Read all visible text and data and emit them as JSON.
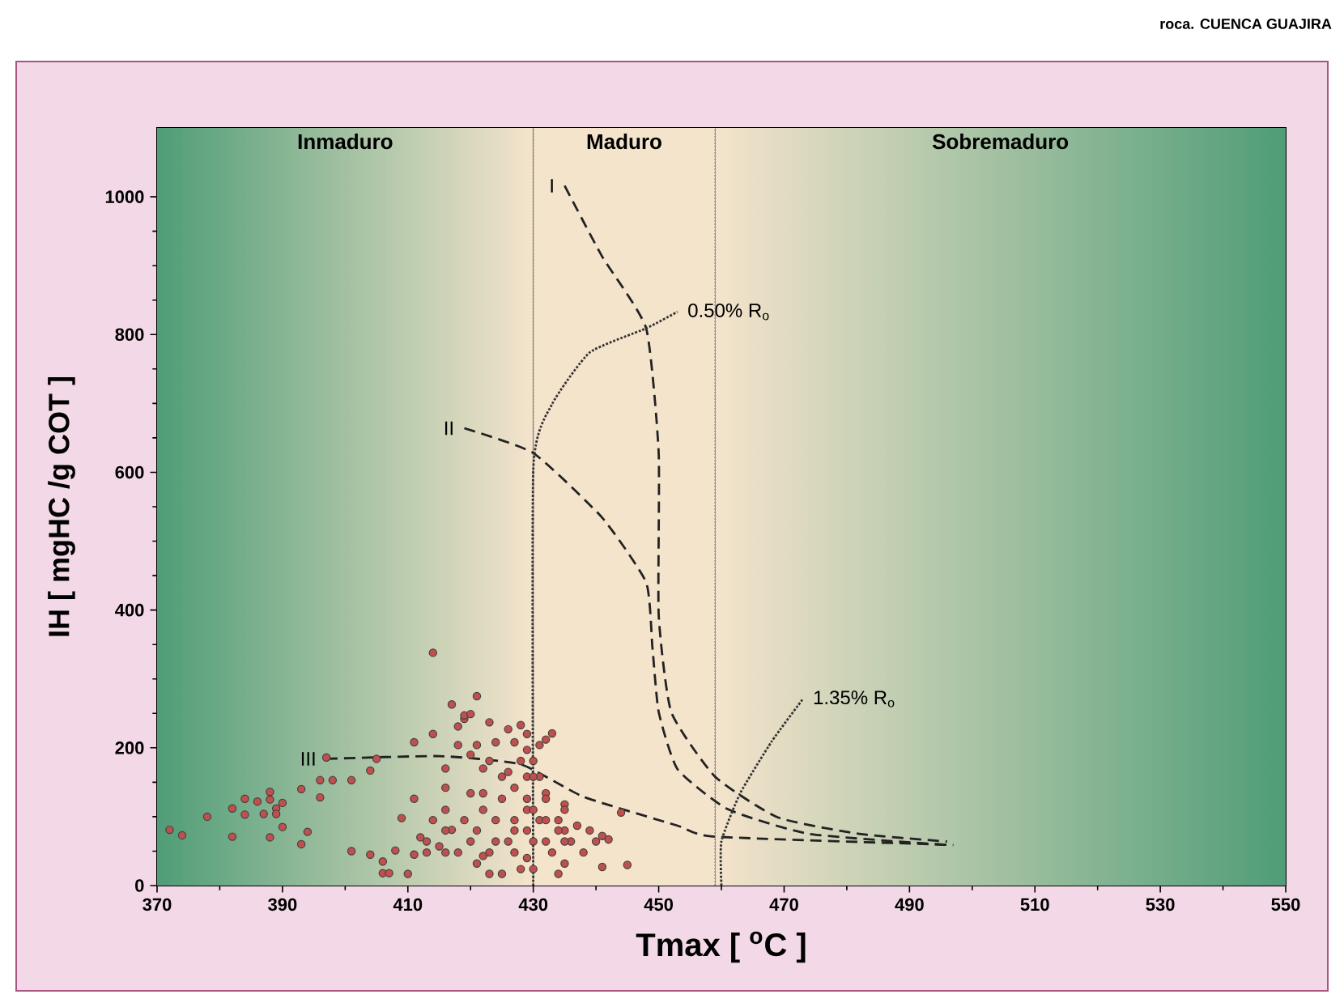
{
  "chart_data": {
    "type": "scatter",
    "title": "roca. CUENCA GUAJIRA",
    "xlabel": "Tmax [ $^{o}$C ]",
    "ylabel": "IH [ mgHC /g COT ]",
    "xlim": [
      370,
      550
    ],
    "ylim": [
      0,
      1100
    ],
    "xticks": [
      370,
      390,
      410,
      430,
      450,
      470,
      490,
      510,
      530,
      550
    ],
    "yticks": [
      0,
      200,
      400,
      600,
      800,
      1000
    ],
    "bands": [
      {
        "axis": "x",
        "from": 370,
        "to": 430,
        "label": "Inmaduro",
        "color": "#4f9d77"
      },
      {
        "axis": "x",
        "from": 430,
        "to": 459,
        "label": "Maduro",
        "color": "#f5e4cc"
      },
      {
        "axis": "x",
        "from": 459,
        "to": 550,
        "label": "Sobremaduro",
        "color": "#4f9d77"
      }
    ],
    "ref_lines": [
      {
        "axis": "x",
        "value": 430,
        "color": "#9a9a9a",
        "line_style": "dotted"
      },
      {
        "axis": "x",
        "value": 459,
        "color": "#9a9a9a",
        "line_style": "dotted"
      }
    ],
    "series": [
      {
        "color": "#c0504d",
        "marker": "circle",
        "x": [
          372,
          374,
          378,
          382,
          382,
          384,
          384,
          386,
          387,
          388,
          388,
          388,
          389,
          389,
          390,
          390,
          393,
          393,
          394,
          396,
          396,
          397,
          398,
          401,
          401,
          404,
          404,
          405,
          406,
          406,
          407,
          408,
          409,
          410,
          411,
          411,
          411,
          412,
          413,
          414,
          414,
          414,
          415,
          416,
          416,
          416,
          416,
          417,
          417,
          418,
          418,
          419,
          419,
          419,
          420,
          420,
          420,
          421,
          421,
          421,
          422,
          422,
          422,
          423,
          423,
          423,
          424,
          424,
          424,
          425,
          425,
          426,
          426,
          426,
          427,
          427,
          427,
          428,
          428,
          429,
          429,
          429,
          429,
          429,
          430,
          430,
          430,
          431,
          431,
          431,
          432,
          432,
          432,
          433,
          433,
          434,
          434,
          435,
          435,
          435,
          436,
          437,
          438,
          439,
          440,
          441,
          441,
          442,
          444,
          445,
          420,
          422,
          425,
          427,
          428,
          429,
          430,
          430,
          432,
          434,
          427,
          423,
          421,
          418,
          416,
          413,
          429,
          435,
          432,
          435
        ],
        "values": [
          81,
          73,
          100,
          112,
          71,
          126,
          103,
          122,
          104,
          125,
          136,
          70,
          112,
          104,
          120,
          85,
          140,
          60,
          78,
          128,
          153,
          186,
          153,
          153,
          50,
          167,
          45,
          184,
          35,
          18,
          18,
          51,
          98,
          17,
          208,
          126,
          45,
          70,
          64,
          338,
          220,
          95,
          57,
          110,
          170,
          142,
          48,
          263,
          81,
          231,
          204,
          242,
          247,
          95,
          190,
          64,
          249,
          204,
          80,
          275,
          170,
          134,
          43,
          17,
          237,
          181,
          95,
          208,
          64,
          17,
          126,
          227,
          64,
          165,
          208,
          80,
          95,
          24,
          233,
          197,
          40,
          158,
          220,
          110,
          181,
          64,
          24,
          204,
          158,
          95,
          134,
          64,
          212,
          48,
          221,
          17,
          95,
          80,
          32,
          118,
          64,
          87,
          48,
          80,
          64,
          72,
          27,
          67,
          106,
          30,
          134,
          110,
          158,
          142,
          181,
          126,
          158,
          110,
          95,
          80,
          48,
          48,
          32,
          48,
          80,
          48,
          80,
          110,
          126,
          64
        ]
      },
      {
        "type": "line",
        "color": "#222222",
        "line_style": "dashed",
        "marker": "none",
        "x": [
          435,
          441,
          448,
          450,
          450,
          452,
          459,
          469,
          482,
          496
        ],
        "values": [
          1016,
          913,
          809,
          628,
          393,
          252,
          158,
          99,
          75,
          64
        ]
      },
      {
        "type": "line",
        "color": "#222222",
        "line_style": "dashed",
        "marker": "none",
        "x": [
          419,
          430,
          441,
          448,
          449,
          450,
          453,
          461,
          474,
          496
        ],
        "values": [
          664,
          628,
          534,
          440,
          346,
          252,
          169,
          111,
          75,
          59
        ]
      },
      {
        "type": "line",
        "color": "#222222",
        "line_style": "dashed",
        "marker": "none",
        "x": [
          397,
          415,
          428,
          438,
          453,
          459,
          497
        ],
        "values": [
          184,
          188,
          176,
          129,
          87,
          71,
          59
        ]
      },
      {
        "type": "line",
        "color": "#333333",
        "line_style": "dotted",
        "marker": "none",
        "x": [
          430,
          430,
          433,
          439,
          448,
          453
        ],
        "values": [
          0,
          605,
          699,
          774,
          809,
          833
        ]
      },
      {
        "type": "line",
        "color": "#333333",
        "line_style": "dotted",
        "marker": "none",
        "x": [
          460,
          460,
          463,
          468,
          473
        ],
        "values": [
          0,
          64,
          134,
          209,
          271
        ]
      }
    ],
    "annotations": [
      {
        "text": "I",
        "x": 435,
        "y": 1016
      },
      {
        "text": "II",
        "x": 419,
        "y": 664
      },
      {
        "text": "III",
        "x": 397,
        "y": 184
      },
      {
        "text": "0.50% R$_{o}$",
        "x": 453,
        "y": 833
      },
      {
        "text": "1.35% R$_{o}$",
        "x": 473,
        "y": 271
      }
    ]
  }
}
